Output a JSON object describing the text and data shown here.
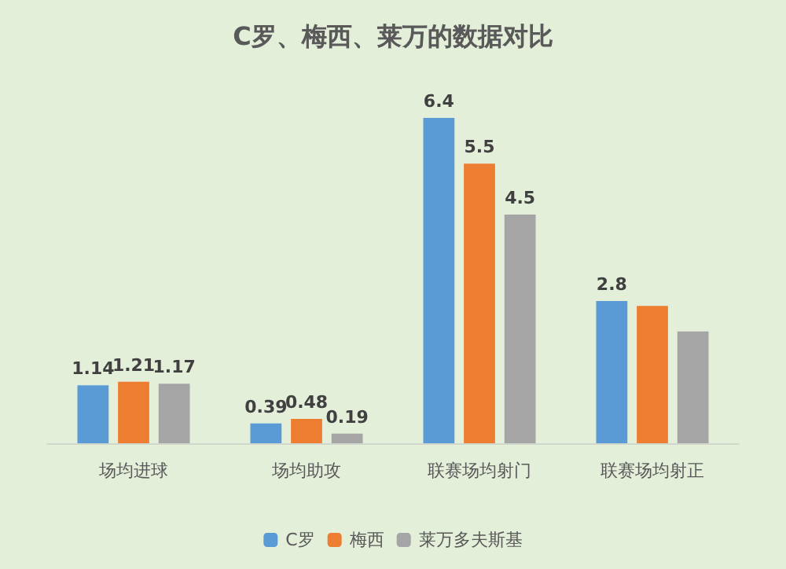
{
  "chart_data": {
    "type": "bar",
    "title": "C罗、梅西、莱万的数据对比",
    "categories": [
      "场均进球",
      "场均助攻",
      "联赛场均射门",
      "联赛场均射正"
    ],
    "series": [
      {
        "name": "C罗",
        "color": "#5b9bd5",
        "values": [
          1.14,
          0.39,
          6.4,
          2.8
        ],
        "value_labels": [
          "1.14",
          "0.39",
          "6.4",
          "2.8"
        ]
      },
      {
        "name": "梅西",
        "color": "#ed7d31",
        "values": [
          1.21,
          0.48,
          5.5,
          2.7
        ],
        "value_labels": [
          "1.21",
          "0.48",
          "5.5",
          null
        ]
      },
      {
        "name": "莱万多夫斯基",
        "color": "#a5a5a5",
        "values": [
          1.17,
          0.19,
          4.5,
          2.2
        ],
        "value_labels": [
          "1.17",
          "0.19",
          "4.5",
          null
        ]
      }
    ],
    "legend": "bottom"
  }
}
